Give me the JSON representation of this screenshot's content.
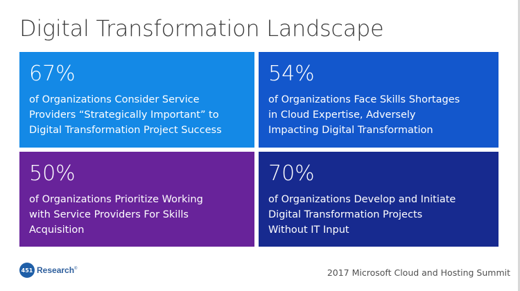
{
  "slide": {
    "title": "Digital Transformation Landscape",
    "tiles": [
      {
        "percent": "67%",
        "description": "of Organizations Consider Service\nProviders “Strategically Important” to\nDigital Transformation Project Success",
        "color": "#1489e6"
      },
      {
        "percent": "54%",
        "description": "of Organizations Face Skills Shortages\nin Cloud Expertise, Adversely\nImpacting Digital Transformation",
        "color": "#1357cc"
      },
      {
        "percent": "50%",
        "description": "of Organizations Prioritize Working\nwith Service Providers For Skills\nAcquisition",
        "color": "#68239a"
      },
      {
        "percent": "70%",
        "description": "of Organizations Develop and Initiate\nDigital Transformation Projects\nWithout IT Input",
        "color": "#172a8f"
      }
    ]
  },
  "footer": {
    "logo_number": "451",
    "logo_text": "Research",
    "logo_mark": "®",
    "event": "2017 Microsoft Cloud and Hosting Summit"
  }
}
